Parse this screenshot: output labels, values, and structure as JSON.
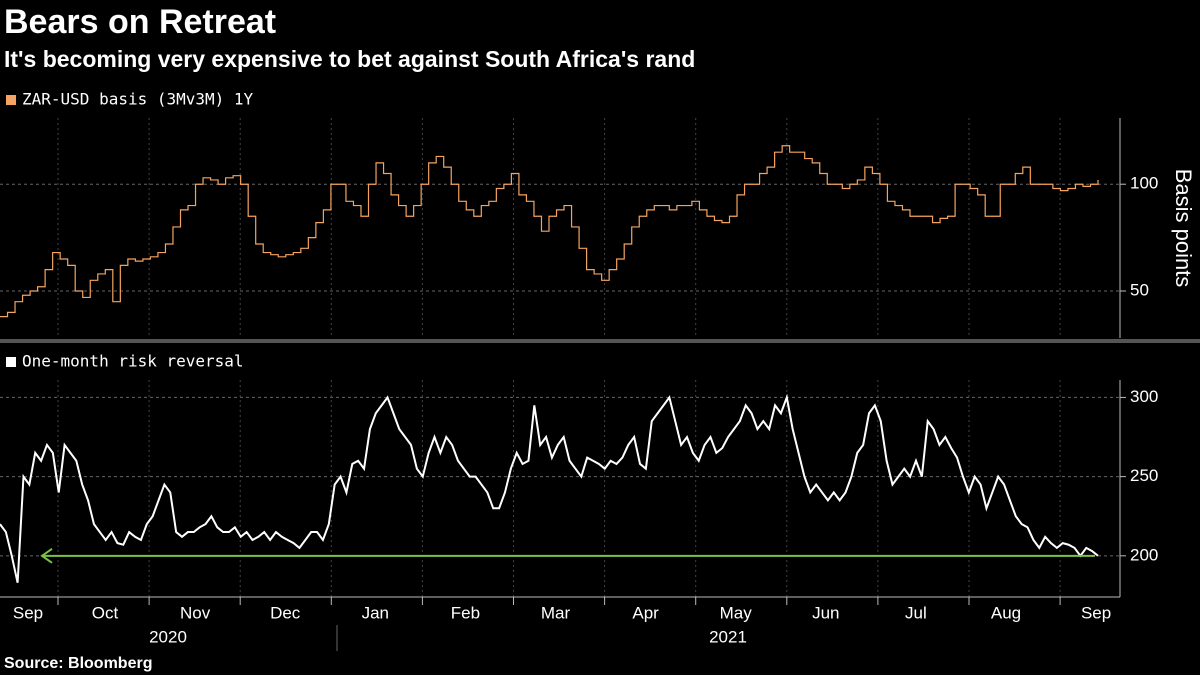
{
  "title": "Bears on Retreat",
  "subtitle": "It's becoming very expensive to bet against South Africa's rand",
  "source": "Source: Bloomberg",
  "chart_data": [
    {
      "type": "line",
      "step": true,
      "y_label": "Basis points",
      "grid": true,
      "ylim": [
        28,
        131
      ],
      "yticks": [
        50,
        100
      ],
      "series": [
        {
          "name": "ZAR-USD basis (3Mv3M) 1Y",
          "color": "#f4a460",
          "values": [
            38,
            40,
            45,
            48,
            50,
            52,
            60,
            68,
            65,
            62,
            50,
            47,
            55,
            58,
            60,
            45,
            62,
            65,
            64,
            65,
            66,
            68,
            72,
            80,
            88,
            90,
            100,
            103,
            102,
            100,
            103,
            104,
            100,
            85,
            72,
            68,
            67,
            66,
            67,
            68,
            70,
            75,
            82,
            88,
            100,
            100,
            92,
            90,
            85,
            100,
            110,
            105,
            95,
            90,
            85,
            90,
            100,
            110,
            113,
            108,
            100,
            92,
            88,
            85,
            90,
            92,
            98,
            100,
            105,
            95,
            92,
            85,
            78,
            85,
            88,
            90,
            80,
            70,
            60,
            58,
            55,
            60,
            65,
            72,
            80,
            85,
            88,
            90,
            90,
            88,
            90,
            90,
            92,
            88,
            85,
            83,
            82,
            85,
            95,
            100,
            100,
            105,
            108,
            115,
            118,
            115,
            115,
            112,
            110,
            105,
            100,
            100,
            98,
            100,
            102,
            108,
            105,
            100,
            92,
            90,
            88,
            85,
            85,
            85,
            82,
            84,
            85,
            100,
            100,
            98,
            95,
            85,
            85,
            100,
            100,
            105,
            108,
            100,
            100,
            100,
            98,
            97,
            98,
            100,
            99,
            100,
            102
          ]
        }
      ]
    },
    {
      "type": "line",
      "grid": true,
      "ylim": [
        174,
        311
      ],
      "yticks": [
        200,
        250,
        300
      ],
      "reference_line": {
        "value": 200,
        "color": "#7dc242"
      },
      "months": [
        "Sep",
        "Oct",
        "Nov",
        "Dec",
        "Jan",
        "Feb",
        "Mar",
        "Apr",
        "May",
        "Jun",
        "Jul",
        "Aug",
        "Sep"
      ],
      "years": [
        "2020",
        "2021"
      ],
      "series": [
        {
          "name": "One-month risk reversal",
          "color": "#ffffff",
          "values": [
            220,
            215,
            200,
            183,
            250,
            245,
            265,
            260,
            270,
            265,
            240,
            270,
            265,
            260,
            245,
            235,
            220,
            215,
            210,
            215,
            208,
            207,
            215,
            212,
            210,
            220,
            225,
            235,
            245,
            240,
            215,
            212,
            215,
            215,
            218,
            220,
            225,
            218,
            215,
            215,
            218,
            212,
            215,
            210,
            212,
            215,
            210,
            215,
            212,
            210,
            208,
            205,
            210,
            215,
            215,
            210,
            220,
            245,
            250,
            240,
            258,
            260,
            255,
            280,
            290,
            295,
            300,
            290,
            280,
            275,
            270,
            255,
            250,
            265,
            275,
            265,
            275,
            270,
            260,
            255,
            250,
            250,
            245,
            240,
            230,
            230,
            240,
            255,
            265,
            258,
            260,
            295,
            270,
            275,
            262,
            270,
            275,
            260,
            255,
            250,
            262,
            260,
            258,
            255,
            260,
            258,
            262,
            270,
            275,
            258,
            255,
            285,
            290,
            295,
            300,
            285,
            270,
            275,
            265,
            260,
            270,
            275,
            265,
            268,
            275,
            280,
            285,
            295,
            290,
            280,
            285,
            280,
            295,
            290,
            300,
            280,
            265,
            250,
            240,
            245,
            240,
            235,
            240,
            235,
            240,
            250,
            265,
            270,
            290,
            295,
            285,
            260,
            245,
            250,
            255,
            250,
            260,
            250,
            285,
            280,
            270,
            275,
            268,
            262,
            250,
            240,
            250,
            245,
            230,
            240,
            250,
            245,
            235,
            225,
            220,
            218,
            210,
            205,
            212,
            208,
            205,
            208,
            207,
            205,
            200,
            205,
            203,
            200
          ]
        }
      ]
    }
  ]
}
